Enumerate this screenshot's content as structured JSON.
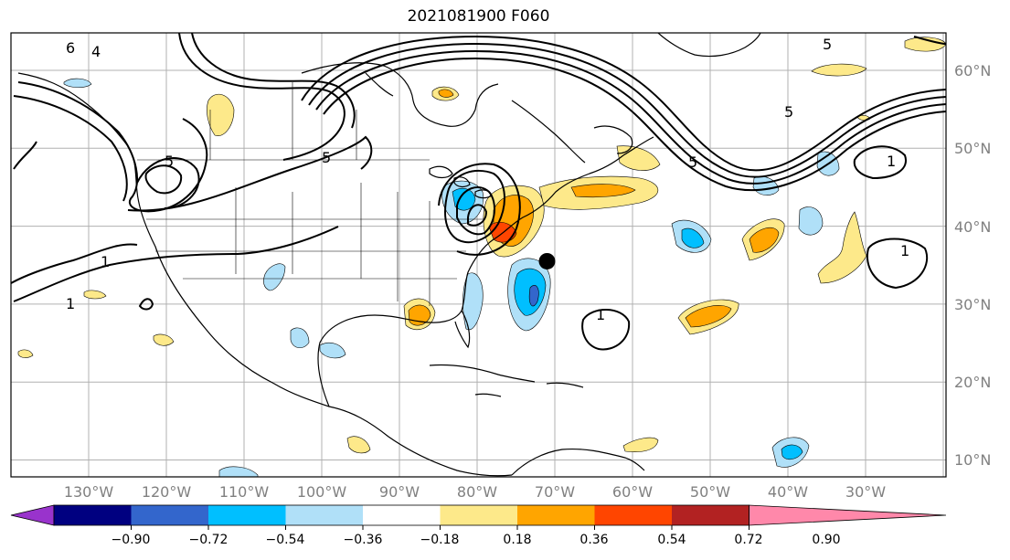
{
  "title": "2021081900 F060",
  "latitude_labels": [
    "60°N",
    "50°N",
    "40°N",
    "30°N",
    "20°N",
    "10°N"
  ],
  "longitude_labels": [
    "130°W",
    "120°W",
    "110°W",
    "100°W",
    "90°W",
    "80°W",
    "70°W",
    "60°W",
    "50°W",
    "40°W",
    "30°W"
  ],
  "colorbar": {
    "tick_labels": [
      "−0.90",
      "−0.72",
      "−0.54",
      "−0.36",
      "−0.18",
      "0.18",
      "0.36",
      "0.54",
      "0.72",
      "0.90"
    ],
    "colors": [
      "#9933cc",
      "#000080",
      "#3366cc",
      "#00bfff",
      "#b0e0f8",
      "#ffffff",
      "#fde98a",
      "#ffa500",
      "#ff4500",
      "#b22222",
      "#ff88aa"
    ]
  },
  "contour_labels": [
    "6",
    "4",
    "5",
    "5",
    "5",
    "5",
    "5",
    "1",
    "1",
    "1",
    "1",
    "1"
  ],
  "storm_marker": {
    "lon": -71.0,
    "lat": 35.5
  }
}
